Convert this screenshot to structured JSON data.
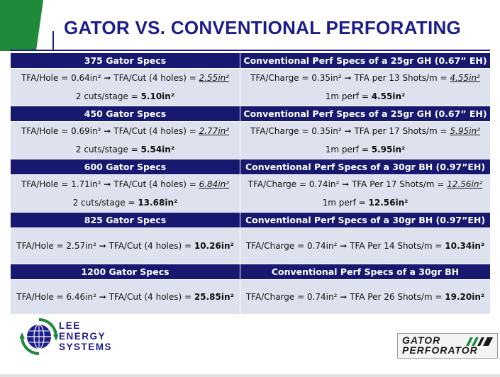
{
  "title": "GATOR VS. CONVENTIONAL PERFORATING",
  "rows": [
    {
      "left_header": "375 Gator Specs",
      "right_header": "Conventional Perf Specs of a 25gr GH (0.67” EH)",
      "left_l1_a": "TFA/Hole = 0.64in²",
      "left_l1_b": "TFA/Cut (4 holes) = ",
      "left_l1_val": "2.55in²",
      "left_l2_a": "2 cuts/stage = ",
      "left_l2_val": "5.10in²",
      "right_l1_a": "TFA/Charge = 0.35in²",
      "right_l1_b": "TFA per 13 Shots/m = ",
      "right_l1_val": "4.55in²",
      "right_l2_a": "1m perf = ",
      "right_l2_val": "4.55in²"
    },
    {
      "left_header": "450 Gator Specs",
      "right_header": "Conventional Perf Specs of a 25gr GH (0.67” EH)",
      "left_l1_a": "TFA/Hole = 0.69in²",
      "left_l1_b": "TFA/Cut (4 holes) = ",
      "left_l1_val": "2.77in²",
      "left_l2_a": "2 cuts/stage = ",
      "left_l2_val": "5.54in²",
      "right_l1_a": "TFA/Charge = 0.35in²",
      "right_l1_b": "TFA per 17 Shots/m = ",
      "right_l1_val": "5.95in²",
      "right_l2_a": "1m perf = ",
      "right_l2_val": "5.95in²"
    },
    {
      "left_header": "600 Gator Specs",
      "right_header": "Conventional Perf Specs of a 30gr BH (0.97”EH)",
      "left_l1_a": "TFA/Hole = 1.71in²",
      "left_l1_b": "TFA/Cut (4 holes) = ",
      "left_l1_val": "6.84in²",
      "left_l2_a": "2 cuts/stage = ",
      "left_l2_val": "13.68in²",
      "right_l1_a": "TFA/Charge = 0.74in²",
      "right_l1_b": "TFA Per 17 Shots/m = ",
      "right_l1_val": "12.56in²",
      "right_l2_a": "1m perf = ",
      "right_l2_val": "12.56in²"
    },
    {
      "left_header": "825 Gator Specs",
      "right_header": "Conventional Perf Specs of a 30gr BH (0.97”EH)",
      "left_l1_a": "TFA/Hole = 2.57in²",
      "left_l1_b": "TFA/Cut (4 holes) = ",
      "left_l1_val": "10.26in²",
      "right_l1_a": "TFA/Charge = 0.74in²",
      "right_l1_b": "TFA Per 14 Shots/m = ",
      "right_l1_val": "10.34in²"
    },
    {
      "left_header": "1200 Gator Specs",
      "right_header": "Conventional Perf Specs of a 30gr BH",
      "left_l1_a": "TFA/Hole = 6.46in²",
      "left_l1_b": "TFA/Cut (4 holes) = ",
      "left_l1_val": "25.85in²",
      "right_l1_a": "TFA/Charge = 0.74in²",
      "right_l1_b": "TFA Per 26 Shots/m = ",
      "right_l1_val": "19.20in²"
    }
  ],
  "arrow": "➞",
  "logo": {
    "line1": "LEE",
    "line2": "ENERGY",
    "line3": "SYSTEMS"
  },
  "gator_logo": {
    "line1": "GATOR",
    "line2": "PERFORATOR"
  },
  "colors": {
    "navy": "#17186f",
    "cell": "#dde2ee",
    "green": "#1f8a3a"
  }
}
